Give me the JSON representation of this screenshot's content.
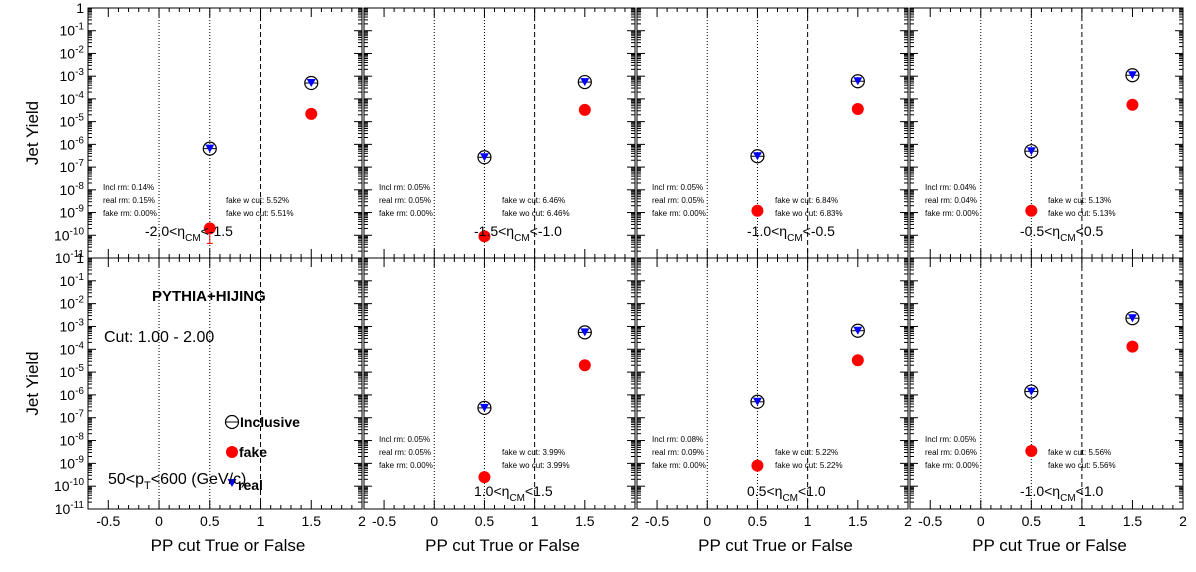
{
  "figure": {
    "ylabel": "Jet Yield",
    "xlabel": "PP cut True or False",
    "generator_label": "PYTHIA+HIJING",
    "cut_label": "Cut: 1.00 - 2.00",
    "pt_label": {
      "prefix": "50<p",
      "sub": "T",
      "suffix": "<600 (GeV/c)"
    },
    "legend": [
      {
        "label": "Inclusive",
        "marker": "open-circle"
      },
      {
        "label": "fake",
        "marker": "filled-circle",
        "color": "#ff0000"
      },
      {
        "label": "real",
        "marker": "filled-triangle-down",
        "color": "#0000ff"
      }
    ],
    "x_ticks": [
      "-0.5",
      "0",
      "0.5",
      "1",
      "1.5",
      "2"
    ],
    "y_ticks": [
      {
        "base": "10",
        "exp": "-11"
      },
      {
        "base": "10",
        "exp": "-10"
      },
      {
        "base": "10",
        "exp": "-9"
      },
      {
        "base": "10",
        "exp": "-8"
      },
      {
        "base": "10",
        "exp": "-7"
      },
      {
        "base": "10",
        "exp": "-6"
      },
      {
        "base": "10",
        "exp": "-5"
      },
      {
        "base": "10",
        "exp": "-4"
      },
      {
        "base": "10",
        "exp": "-3"
      },
      {
        "base": "10",
        "exp": "-2"
      },
      {
        "base": "10",
        "exp": "-1"
      },
      {
        "base": "1",
        "exp": ""
      }
    ]
  },
  "chart_data": {
    "type": "scatter",
    "xlim": [
      -0.7,
      2.0
    ],
    "ylim": [
      1e-11,
      1
    ],
    "ylog": true,
    "grid": "vertical dotted at 0 and 0.5, dashed at 1",
    "panels": [
      {
        "eta_label": {
          "pre": "-2.0<η",
          "sub": "CM",
          "post": "<-1.5"
        },
        "inclusive": [
          [
            0.5,
            6.5e-07
          ],
          [
            1.5,
            0.0005
          ]
        ],
        "real": [
          [
            0.5,
            6.5e-07
          ],
          [
            1.5,
            0.0005
          ]
        ],
        "fake": [
          [
            0.5,
            2e-10
          ],
          [
            1.5,
            2.2e-05
          ]
        ],
        "stats_left": [
          "Incl rm: 0.14%",
          "real rm: 0.15%",
          "fake rm: 0.00%"
        ],
        "stats_right": [
          "fake w cut: 5.52%",
          "fake wo cut: 5.51%"
        ]
      },
      {
        "eta_label": {
          "pre": "-1.5<η",
          "sub": "CM",
          "post": "<-1.0"
        },
        "inclusive": [
          [
            0.5,
            2.7e-07
          ],
          [
            1.5,
            0.00055
          ]
        ],
        "real": [
          [
            0.5,
            2.7e-07
          ],
          [
            1.5,
            0.00055
          ]
        ],
        "fake": [
          [
            0.5,
            9e-11
          ],
          [
            1.5,
            3.3e-05
          ]
        ],
        "stats_left": [
          "Incl rm: 0.05%",
          "real rm: 0.05%",
          "fake rm: 0.00%"
        ],
        "stats_right": [
          "fake w cut: 6.46%",
          "fake wo cut: 6.46%"
        ]
      },
      {
        "eta_label": {
          "pre": "-1.0<η",
          "sub": "CM",
          "post": "<-0.5"
        },
        "inclusive": [
          [
            0.5,
            3e-07
          ],
          [
            1.5,
            0.0006
          ]
        ],
        "real": [
          [
            0.5,
            3e-07
          ],
          [
            1.5,
            0.0006
          ]
        ],
        "fake": [
          [
            0.5,
            1.2e-09
          ],
          [
            1.5,
            3.6e-05
          ]
        ],
        "stats_left": [
          "Incl rm: 0.05%",
          "real rm: 0.05%",
          "fake rm: 0.00%"
        ],
        "stats_right": [
          "fake w cut: 6.84%",
          "fake wo cut: 6.83%"
        ]
      },
      {
        "eta_label": {
          "pre": "-0.5<η",
          "sub": "CM",
          "post": "<0.5"
        },
        "inclusive": [
          [
            0.5,
            5e-07
          ],
          [
            1.5,
            0.0011
          ]
        ],
        "real": [
          [
            0.5,
            5e-07
          ],
          [
            1.5,
            0.0011
          ]
        ],
        "fake": [
          [
            0.5,
            1.2e-09
          ],
          [
            1.5,
            5.5e-05
          ]
        ],
        "stats_left": [
          "Incl rm: 0.04%",
          "real rm: 0.04%",
          "fake rm: 0.00%"
        ],
        "stats_right": [
          "fake w cut: 5.13%",
          "fake wo cut: 5.13%"
        ]
      },
      {
        "eta_label": null,
        "inclusive": [],
        "real": [],
        "fake": [],
        "stats_left": [],
        "stats_right": []
      },
      {
        "eta_label": {
          "pre": "1.0<η",
          "sub": "CM",
          "post": "<1.5"
        },
        "inclusive": [
          [
            0.5,
            2.7e-07
          ],
          [
            1.5,
            0.00055
          ]
        ],
        "real": [
          [
            0.5,
            2.7e-07
          ],
          [
            1.5,
            0.00055
          ]
        ],
        "fake": [
          [
            0.5,
            2.5e-10
          ],
          [
            1.5,
            2e-05
          ]
        ],
        "stats_left": [
          "Incl rm: 0.05%",
          "real rm: 0.05%",
          "fake rm: 0.00%"
        ],
        "stats_right": [
          "fake w cut: 3.99%",
          "fake wo cut: 3.99%"
        ]
      },
      {
        "eta_label": {
          "pre": "0.5<η",
          "sub": "CM",
          "post": "<1.0"
        },
        "inclusive": [
          [
            0.5,
            5e-07
          ],
          [
            1.5,
            0.00065
          ]
        ],
        "real": [
          [
            0.5,
            5e-07
          ],
          [
            1.5,
            0.00065
          ]
        ],
        "fake": [
          [
            0.5,
            8e-10
          ],
          [
            1.5,
            3.3e-05
          ]
        ],
        "stats_left": [
          "Incl rm: 0.08%",
          "real rm: 0.09%",
          "fake rm: 0.00%"
        ],
        "stats_right": [
          "fake w cut: 5.22%",
          "fake wo cut: 5.22%"
        ]
      },
      {
        "eta_label": {
          "pre": "-1.0<η",
          "sub": "CM",
          "post": "<1.0"
        },
        "inclusive": [
          [
            0.5,
            1.4e-06
          ],
          [
            1.5,
            0.0023
          ]
        ],
        "real": [
          [
            0.5,
            1.4e-06
          ],
          [
            1.5,
            0.0023
          ]
        ],
        "fake": [
          [
            0.5,
            3.5e-09
          ],
          [
            1.5,
            0.00013
          ]
        ],
        "stats_left": [
          "Incl rm: 0.05%",
          "real rm: 0.06%",
          "fake rm: 0.00%"
        ],
        "stats_right": [
          "fake w cut: 5.56%",
          "fake wo cut: 5.56%"
        ]
      }
    ]
  }
}
